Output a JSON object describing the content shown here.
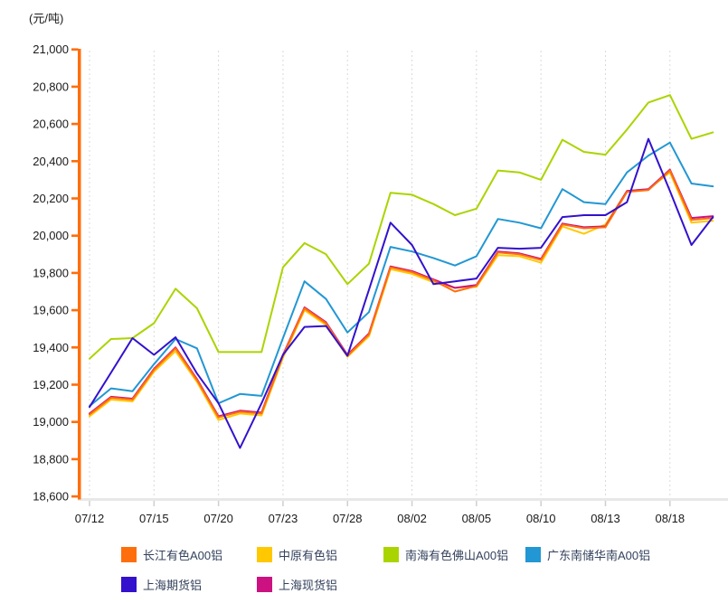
{
  "chart_data": {
    "type": "line",
    "title": "",
    "ylabel": "(元/吨)",
    "ylim": [
      18600,
      21000
    ],
    "y_tick_step": 200,
    "y_tick_labels": [
      "21,000",
      "20,800",
      "20,600",
      "20,400",
      "20,200",
      "20,000",
      "19,800",
      "19,600",
      "19,400",
      "19,200",
      "19,000",
      "18,800",
      "18,600"
    ],
    "x_tick_labels": [
      "07/12",
      "07/15",
      "07/20",
      "07/23",
      "07/28",
      "08/02",
      "08/05",
      "08/10",
      "08/13",
      "08/18"
    ],
    "x_ticks_every_n_points": 3,
    "points_per_series": 30,
    "grid": "vertical-dashed",
    "legend_position": "bottom",
    "axis_color": "#ff6e0c",
    "x_axis_line_color": "#e8e8e8",
    "gridline_color": "#d9d9d9",
    "series": [
      {
        "name": "长江有色A00铝",
        "color": "#ff6e0c",
        "values": [
          19040,
          19130,
          19120,
          19280,
          19395,
          19225,
          19025,
          19055,
          19045,
          19355,
          19610,
          19530,
          19355,
          19470,
          19830,
          19805,
          19760,
          19700,
          19730,
          19910,
          19900,
          19870,
          20060,
          20040,
          20045,
          20235,
          20245,
          20350,
          20085,
          20095
        ]
      },
      {
        "name": "中原有色铝",
        "color": "#ffc800",
        "values": [
          19030,
          19120,
          19110,
          19270,
          19380,
          19215,
          19010,
          19045,
          19035,
          19345,
          19600,
          19520,
          19350,
          19460,
          19820,
          19795,
          19750,
          19720,
          19725,
          19895,
          19890,
          19855,
          20050,
          20010,
          20060,
          20240,
          20250,
          20340,
          20070,
          20080
        ]
      },
      {
        "name": "南海有色佛山A00铝",
        "color": "#aad400",
        "values": [
          19340,
          19445,
          19450,
          19530,
          19715,
          19610,
          19375,
          19375,
          19375,
          19830,
          19960,
          19900,
          19740,
          19850,
          20230,
          20220,
          20170,
          20110,
          20145,
          20350,
          20340,
          20300,
          20515,
          20450,
          20435,
          20570,
          20715,
          20755,
          20520,
          20555
        ]
      },
      {
        "name": "广东南储华南A00铝",
        "color": "#2297d3",
        "values": [
          19085,
          19180,
          19165,
          19310,
          19445,
          19395,
          19100,
          19150,
          19140,
          19450,
          19755,
          19660,
          19480,
          19590,
          19940,
          19915,
          19880,
          19840,
          19890,
          20090,
          20070,
          20040,
          20250,
          20180,
          20170,
          20340,
          20430,
          20500,
          20280,
          20265
        ]
      },
      {
        "name": "上海期货铝",
        "color": "#3311cd",
        "values": [
          19080,
          19265,
          19450,
          19360,
          19455,
          19260,
          19100,
          18860,
          19100,
          19360,
          19510,
          19515,
          19355,
          19710,
          20070,
          19950,
          19740,
          19755,
          19770,
          19935,
          19930,
          19935,
          20100,
          20110,
          20110,
          20180,
          20520,
          20240,
          19950,
          20100
        ]
      },
      {
        "name": "上海现货铝",
        "color": "#cc1280",
        "values": [
          19045,
          19135,
          19125,
          19285,
          19400,
          19230,
          19030,
          19060,
          19050,
          19360,
          19615,
          19535,
          19360,
          19475,
          19835,
          19810,
          19765,
          19720,
          19735,
          19915,
          19905,
          19875,
          20065,
          20045,
          20050,
          20240,
          20250,
          20355,
          20095,
          20105
        ]
      }
    ]
  },
  "legend": {
    "row1_items": [
      "长江有色A00铝",
      "中原有色铝",
      "南海有色佛山A00铝",
      "广东南储华南A00铝"
    ],
    "row2_items": [
      "上海期货铝",
      "上海现货铝"
    ]
  }
}
